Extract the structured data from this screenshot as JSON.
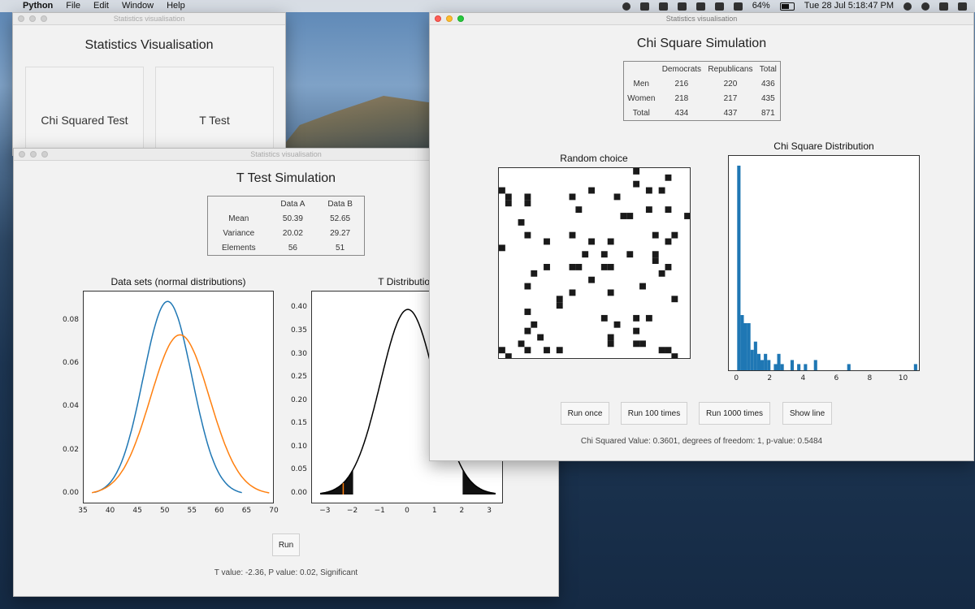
{
  "menubar": {
    "app": "Python",
    "items": [
      "File",
      "Edit",
      "Window",
      "Help"
    ],
    "battery": "64%",
    "clock": "Tue 28 Jul  5:18:47 PM"
  },
  "main_window": {
    "titlebar": "Statistics visualisation",
    "title": "Statistics Visualisation",
    "chi_button": "Chi Squared Test",
    "t_button": "T Test"
  },
  "t_window": {
    "titlebar": "Statistics visualisation",
    "title": "T Test Simulation",
    "table": {
      "headers": [
        "",
        "Data A",
        "Data B"
      ],
      "rows": [
        [
          "Mean",
          "50.39",
          "52.65"
        ],
        [
          "Variance",
          "20.02",
          "29.27"
        ],
        [
          "Elements",
          "56",
          "51"
        ]
      ]
    },
    "run_button": "Run",
    "status": "T value: -2.36, P value: 0.02, Significant"
  },
  "chi_window": {
    "titlebar": "Statistics visualisation",
    "title": "Chi Square Simulation",
    "table": {
      "headers": [
        "",
        "Democrats",
        "Republicans",
        "Total"
      ],
      "rows": [
        [
          "Men",
          "216",
          "220",
          "436"
        ],
        [
          "Women",
          "218",
          "217",
          "435"
        ],
        [
          "Total",
          "434",
          "437",
          "871"
        ]
      ]
    },
    "buttons": [
      "Run once",
      "Run 100 times",
      "Run 1000 times",
      "Show line"
    ],
    "status": "Chi Squared Value: 0.3601, degrees of freedom: 1, p-value: 0.5484"
  },
  "chart_data": [
    {
      "type": "line",
      "title": "Data sets (normal distributions)",
      "xlim": [
        35,
        70
      ],
      "ylim": [
        0,
        0.09
      ],
      "x_ticks": [
        "35",
        "40",
        "45",
        "50",
        "55",
        "60",
        "65",
        "70"
      ],
      "y_ticks": [
        "0.00",
        "0.02",
        "0.04",
        "0.06",
        "0.08"
      ],
      "series": [
        {
          "mean": 50.39,
          "variance": 20.02,
          "x_range": [
            37,
            64
          ],
          "color": "#1f77b4"
        },
        {
          "mean": 52.65,
          "variance": 29.27,
          "x_range": [
            36.5,
            69
          ],
          "color": "#ff7f0e"
        }
      ]
    },
    {
      "type": "line",
      "title": "T Distribution",
      "xlim": [
        -3.5,
        3.5
      ],
      "ylim": [
        0,
        0.42
      ],
      "x_ticks": [
        "−3",
        "−2",
        "−1",
        "0",
        "1",
        "2",
        "3"
      ],
      "y_ticks": [
        "0.00",
        "0.05",
        "0.10",
        "0.15",
        "0.20",
        "0.25",
        "0.30",
        "0.35",
        "0.40"
      ],
      "curve": "standard t distribution",
      "shaded_tails": [
        [
          -3.2,
          -2.0
        ],
        [
          2.0,
          3.2
        ]
      ],
      "marker_x": -2.36,
      "marker_color": "#ff7f0e",
      "color": "#000000"
    },
    {
      "type": "heatmap",
      "title": "Random choice",
      "colors": [
        "#ffffff",
        "#1a1a1a"
      ],
      "grid_size": 30
    },
    {
      "type": "bar",
      "title": "Chi Square Distribution",
      "xlim": [
        -0.5,
        11
      ],
      "x_ticks": [
        "0",
        "2",
        "4",
        "6",
        "8",
        "10"
      ],
      "color": "#1f77b4",
      "bin_width": 0.2,
      "bins": [
        {
          "x": 0.0,
          "v": 100
        },
        {
          "x": 0.2,
          "v": 27
        },
        {
          "x": 0.4,
          "v": 23
        },
        {
          "x": 0.6,
          "v": 23
        },
        {
          "x": 0.8,
          "v": 10
        },
        {
          "x": 1.0,
          "v": 14
        },
        {
          "x": 1.2,
          "v": 8
        },
        {
          "x": 1.4,
          "v": 5
        },
        {
          "x": 1.6,
          "v": 8
        },
        {
          "x": 1.8,
          "v": 5
        },
        {
          "x": 2.2,
          "v": 3
        },
        {
          "x": 2.4,
          "v": 8
        },
        {
          "x": 2.6,
          "v": 3
        },
        {
          "x": 3.2,
          "v": 5
        },
        {
          "x": 3.6,
          "v": 3
        },
        {
          "x": 4.0,
          "v": 3
        },
        {
          "x": 4.6,
          "v": 5
        },
        {
          "x": 6.6,
          "v": 3
        },
        {
          "x": 10.6,
          "v": 3
        }
      ]
    }
  ]
}
